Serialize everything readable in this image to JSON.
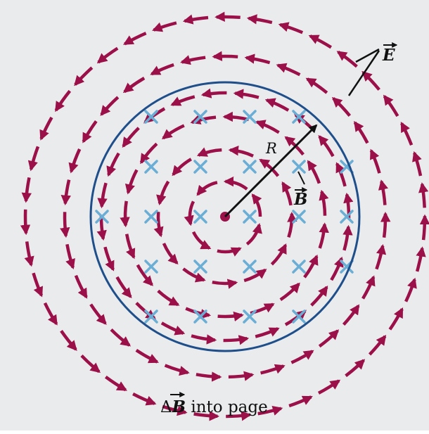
{
  "figure": {
    "background_color": "#e9ebed",
    "field_line_color": "#9b1048",
    "boundary_color": "#1f4f8a",
    "cross_color": "#6aaed6",
    "label_color": "#111111",
    "radius_label": "R",
    "b_field_label": "B",
    "e_field_label": "E",
    "caption_prefix": "Δ",
    "caption_symbol": "B",
    "caption_suffix": " into page"
  }
}
